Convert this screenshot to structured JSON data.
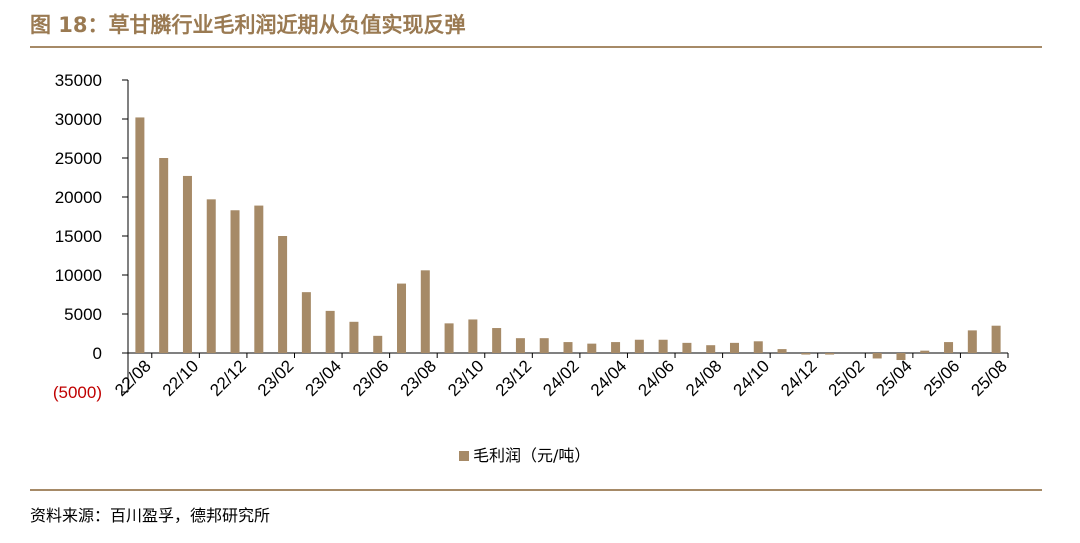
{
  "figure": {
    "title": "图 18：草甘膦行业毛利润近期从负值实现反弹",
    "source": "资料来源：百川盈孚，德邦研究所"
  },
  "colors": {
    "bar": "#a68a67",
    "title": "#9a7a52",
    "rule": "#a68a67",
    "axis": "#000000",
    "negative_label": "#c00000"
  },
  "chart_data": {
    "type": "bar",
    "ylim": [
      -5000,
      35000
    ],
    "yticks": [
      -5000,
      0,
      5000,
      10000,
      15000,
      20000,
      25000,
      30000,
      35000
    ],
    "ytick_labels": [
      "(5000)",
      "0",
      "5000",
      "10000",
      "15000",
      "20000",
      "25000",
      "30000",
      "35000"
    ],
    "xtick_labels": [
      "22/08",
      "22/10",
      "22/12",
      "23/02",
      "23/04",
      "23/06",
      "23/08",
      "23/10",
      "23/12",
      "24/02",
      "24/04",
      "24/06",
      "24/08",
      "24/10",
      "24/12",
      "25/02",
      "25/04",
      "25/06",
      "25/08"
    ],
    "grid": false,
    "legend_position": "bottom-center",
    "series": [
      {
        "name": "毛利润（元/吨）",
        "values": [
          30200,
          25000,
          22700,
          19700,
          18300,
          18900,
          15000,
          7800,
          5400,
          4000,
          2200,
          8900,
          10600,
          3800,
          4300,
          3200,
          1900,
          1900,
          1400,
          1200,
          1400,
          1700,
          1700,
          1300,
          1000,
          1300,
          1500,
          500,
          -200,
          -200,
          0,
          -700,
          -900,
          300,
          1400,
          2900,
          3500
        ]
      }
    ]
  }
}
